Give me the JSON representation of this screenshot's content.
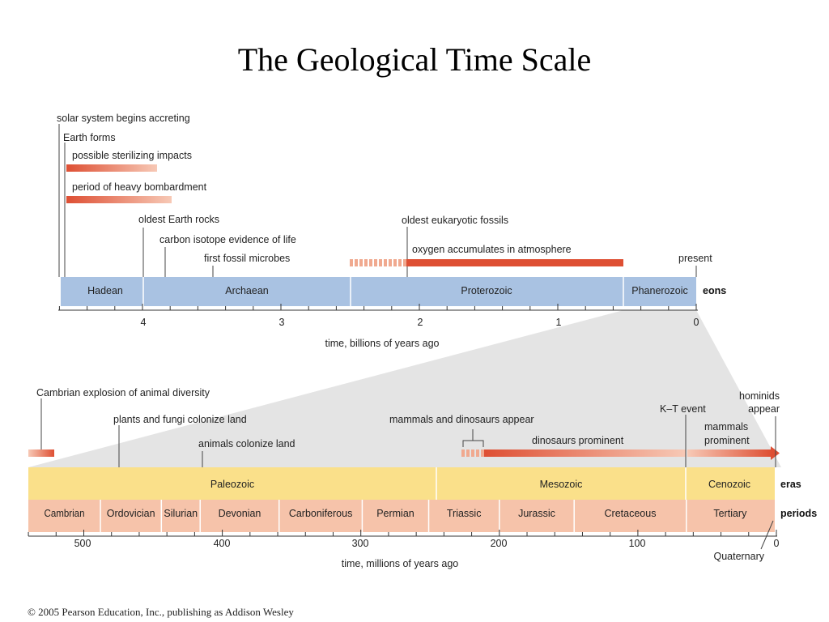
{
  "title": "The Geological Time Scale",
  "footer": "© 2005 Pearson Education, Inc., publishing as Addison Wesley",
  "colors": {
    "eon_bar": "#a9c2e2",
    "era_bar": "#fae08a",
    "period_bar": "#f6c3aa",
    "event_bar": "#de4f33",
    "wedge": "#e2e2e2"
  },
  "eon_scale": {
    "unit_label": "time, billions of years ago",
    "row_label": "eons",
    "ticks": [
      "4",
      "3",
      "2",
      "1",
      "0"
    ],
    "eons": [
      {
        "name": "Hadean",
        "start": 4.6,
        "end": 4.0
      },
      {
        "name": "Archaean",
        "start": 4.0,
        "end": 2.5
      },
      {
        "name": "Proterozoic",
        "start": 2.5,
        "end": 0.54
      },
      {
        "name": "Phanerozoic",
        "start": 0.54,
        "end": 0
      }
    ],
    "events": {
      "solar_system": "solar system begins accreting",
      "earth_forms": "Earth forms",
      "sterilizing": "possible sterilizing impacts",
      "bombardment": "period of heavy bombardment",
      "oldest_rocks": "oldest Earth rocks",
      "carbon_isotope": "carbon isotope evidence of life",
      "first_fossils": "first fossil microbes",
      "eukaryotic": "oldest eukaryotic fossils",
      "oxygen": "oxygen accumulates in atmosphere",
      "present": "present"
    }
  },
  "era_scale": {
    "unit_label": "time, millions of years ago",
    "eras_label": "eras",
    "periods_label": "periods",
    "ticks": [
      "500",
      "400",
      "300",
      "200",
      "100",
      "0"
    ],
    "eras": [
      {
        "name": "Paleozoic",
        "start": 542,
        "end": 251
      },
      {
        "name": "Mesozoic",
        "start": 251,
        "end": 65
      },
      {
        "name": "Cenozoic",
        "start": 65,
        "end": 0
      }
    ],
    "periods": [
      {
        "name": "Cambrian",
        "start": 542,
        "end": 488
      },
      {
        "name": "Ordovician",
        "start": 488,
        "end": 444
      },
      {
        "name": "Silurian",
        "start": 444,
        "end": 416
      },
      {
        "name": "Devonian",
        "start": 416,
        "end": 359
      },
      {
        "name": "Carboniferous",
        "start": 359,
        "end": 299
      },
      {
        "name": "Permian",
        "start": 299,
        "end": 251
      },
      {
        "name": "Triassic",
        "start": 251,
        "end": 200
      },
      {
        "name": "Jurassic",
        "start": 200,
        "end": 146
      },
      {
        "name": "Cretaceous",
        "start": 146,
        "end": 65
      },
      {
        "name": "Tertiary",
        "start": 65,
        "end": 1.8
      }
    ],
    "events": {
      "cambrian_explosion": "Cambrian explosion of animal diversity",
      "plants_fungi": "plants and fungi colonize land",
      "animals_land": "animals colonize land",
      "mammals_dinos": "mammals and dinosaurs appear",
      "dinos_prominent": "dinosaurs prominent",
      "kt_event": "K–T event",
      "mammals_prominent_1": "mammals",
      "mammals_prominent_2": "prominent",
      "hominids_1": "hominids",
      "hominids_2": "appear",
      "quaternary": "Quaternary"
    }
  }
}
